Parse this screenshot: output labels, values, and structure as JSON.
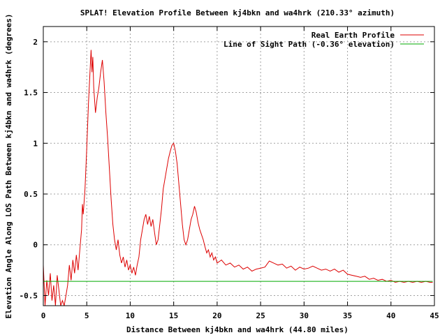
{
  "chart_data": {
    "type": "line",
    "title": "SPLAT! Elevation Profile Between kj4bkn and wa4hrk (210.33° azimuth)",
    "xlabel": "Distance Between kj4bkn and wa4hrk (44.80 miles)",
    "ylabel": "Elevation Angle Along LOS Path Between kj4bkn and wa4hrk (degrees)",
    "xlim": [
      0,
      45
    ],
    "ylim": [
      -0.6,
      2.15
    ],
    "x_ticks": [
      "0",
      "5",
      "10",
      "15",
      "20",
      "25",
      "30",
      "35",
      "40",
      "45"
    ],
    "y_ticks": [
      "-0.5",
      "0",
      "0.5",
      "1",
      "1.5",
      "2"
    ],
    "grid": true,
    "legend_position": "top-right",
    "series": [
      {
        "name": "Real Earth Profile",
        "color": "#dd0000",
        "points": [
          [
            0.0,
            -0.2
          ],
          [
            0.2,
            -0.6
          ],
          [
            0.4,
            -0.35
          ],
          [
            0.6,
            -0.5
          ],
          [
            0.8,
            -0.28
          ],
          [
            1.0,
            -0.55
          ],
          [
            1.2,
            -0.4
          ],
          [
            1.4,
            -0.6
          ],
          [
            1.6,
            -0.3
          ],
          [
            1.8,
            -0.45
          ],
          [
            2.0,
            -0.6
          ],
          [
            2.2,
            -0.55
          ],
          [
            2.4,
            -0.6
          ],
          [
            2.6,
            -0.5
          ],
          [
            2.8,
            -0.4
          ],
          [
            3.0,
            -0.2
          ],
          [
            3.2,
            -0.35
          ],
          [
            3.4,
            -0.15
          ],
          [
            3.6,
            -0.28
          ],
          [
            3.8,
            -0.1
          ],
          [
            4.0,
            -0.25
          ],
          [
            4.2,
            -0.05
          ],
          [
            4.4,
            0.15
          ],
          [
            4.5,
            0.4
          ],
          [
            4.6,
            0.3
          ],
          [
            4.8,
            0.55
          ],
          [
            5.0,
            0.95
          ],
          [
            5.2,
            1.4
          ],
          [
            5.4,
            1.75
          ],
          [
            5.5,
            1.92
          ],
          [
            5.6,
            1.7
          ],
          [
            5.7,
            1.85
          ],
          [
            5.8,
            1.55
          ],
          [
            6.0,
            1.3
          ],
          [
            6.2,
            1.45
          ],
          [
            6.4,
            1.55
          ],
          [
            6.6,
            1.7
          ],
          [
            6.8,
            1.82
          ],
          [
            7.0,
            1.6
          ],
          [
            7.2,
            1.3
          ],
          [
            7.4,
            1.05
          ],
          [
            7.6,
            0.75
          ],
          [
            7.8,
            0.45
          ],
          [
            8.0,
            0.2
          ],
          [
            8.2,
            0.05
          ],
          [
            8.4,
            -0.05
          ],
          [
            8.6,
            0.05
          ],
          [
            8.8,
            -0.1
          ],
          [
            9.0,
            -0.18
          ],
          [
            9.2,
            -0.12
          ],
          [
            9.4,
            -0.22
          ],
          [
            9.6,
            -0.15
          ],
          [
            9.8,
            -0.25
          ],
          [
            10.0,
            -0.2
          ],
          [
            10.2,
            -0.28
          ],
          [
            10.4,
            -0.22
          ],
          [
            10.6,
            -0.3
          ],
          [
            10.8,
            -0.2
          ],
          [
            11.0,
            -0.12
          ],
          [
            11.2,
            0.05
          ],
          [
            11.4,
            0.15
          ],
          [
            11.6,
            0.25
          ],
          [
            11.8,
            0.3
          ],
          [
            12.0,
            0.2
          ],
          [
            12.2,
            0.28
          ],
          [
            12.4,
            0.18
          ],
          [
            12.6,
            0.25
          ],
          [
            12.8,
            0.12
          ],
          [
            13.0,
            0.0
          ],
          [
            13.2,
            0.05
          ],
          [
            13.4,
            0.2
          ],
          [
            13.6,
            0.35
          ],
          [
            13.8,
            0.55
          ],
          [
            14.0,
            0.65
          ],
          [
            14.2,
            0.75
          ],
          [
            14.4,
            0.85
          ],
          [
            14.6,
            0.92
          ],
          [
            14.8,
            0.98
          ],
          [
            15.0,
            1.0
          ],
          [
            15.2,
            0.92
          ],
          [
            15.4,
            0.8
          ],
          [
            15.6,
            0.6
          ],
          [
            15.8,
            0.4
          ],
          [
            16.0,
            0.2
          ],
          [
            16.2,
            0.05
          ],
          [
            16.4,
            0.0
          ],
          [
            16.6,
            0.05
          ],
          [
            16.8,
            0.15
          ],
          [
            17.0,
            0.25
          ],
          [
            17.2,
            0.3
          ],
          [
            17.4,
            0.38
          ],
          [
            17.6,
            0.32
          ],
          [
            17.8,
            0.22
          ],
          [
            18.0,
            0.15
          ],
          [
            18.2,
            0.1
          ],
          [
            18.4,
            0.05
          ],
          [
            18.6,
            -0.02
          ],
          [
            18.8,
            -0.08
          ],
          [
            19.0,
            -0.05
          ],
          [
            19.2,
            -0.12
          ],
          [
            19.4,
            -0.08
          ],
          [
            19.6,
            -0.15
          ],
          [
            19.8,
            -0.12
          ],
          [
            20.0,
            -0.18
          ],
          [
            20.5,
            -0.15
          ],
          [
            21.0,
            -0.2
          ],
          [
            21.5,
            -0.18
          ],
          [
            22.0,
            -0.22
          ],
          [
            22.5,
            -0.2
          ],
          [
            23.0,
            -0.24
          ],
          [
            23.5,
            -0.22
          ],
          [
            24.0,
            -0.26
          ],
          [
            24.5,
            -0.24
          ],
          [
            25.0,
            -0.23
          ],
          [
            25.5,
            -0.22
          ],
          [
            26.0,
            -0.16
          ],
          [
            26.5,
            -0.18
          ],
          [
            27.0,
            -0.2
          ],
          [
            27.5,
            -0.19
          ],
          [
            28.0,
            -0.23
          ],
          [
            28.5,
            -0.21
          ],
          [
            29.0,
            -0.25
          ],
          [
            29.5,
            -0.22
          ],
          [
            30.0,
            -0.24
          ],
          [
            30.5,
            -0.23
          ],
          [
            31.0,
            -0.21
          ],
          [
            31.5,
            -0.23
          ],
          [
            32.0,
            -0.25
          ],
          [
            32.5,
            -0.24
          ],
          [
            33.0,
            -0.26
          ],
          [
            33.5,
            -0.24
          ],
          [
            34.0,
            -0.27
          ],
          [
            34.5,
            -0.25
          ],
          [
            35.0,
            -0.29
          ],
          [
            35.5,
            -0.3
          ],
          [
            36.0,
            -0.31
          ],
          [
            36.5,
            -0.32
          ],
          [
            37.0,
            -0.31
          ],
          [
            37.5,
            -0.34
          ],
          [
            38.0,
            -0.33
          ],
          [
            38.5,
            -0.35
          ],
          [
            39.0,
            -0.34
          ],
          [
            39.5,
            -0.36
          ],
          [
            40.0,
            -0.35
          ],
          [
            40.5,
            -0.37
          ],
          [
            41.0,
            -0.36
          ],
          [
            41.5,
            -0.37
          ],
          [
            42.0,
            -0.36
          ],
          [
            42.5,
            -0.37
          ],
          [
            43.0,
            -0.36
          ],
          [
            43.5,
            -0.37
          ],
          [
            44.0,
            -0.36
          ],
          [
            44.5,
            -0.37
          ],
          [
            44.8,
            -0.37
          ]
        ]
      },
      {
        "name": "Line of Sight Path (-0.36° elevation)",
        "color": "#00aa00",
        "points": [
          [
            0.0,
            -0.36
          ],
          [
            44.8,
            -0.36
          ]
        ]
      }
    ]
  }
}
